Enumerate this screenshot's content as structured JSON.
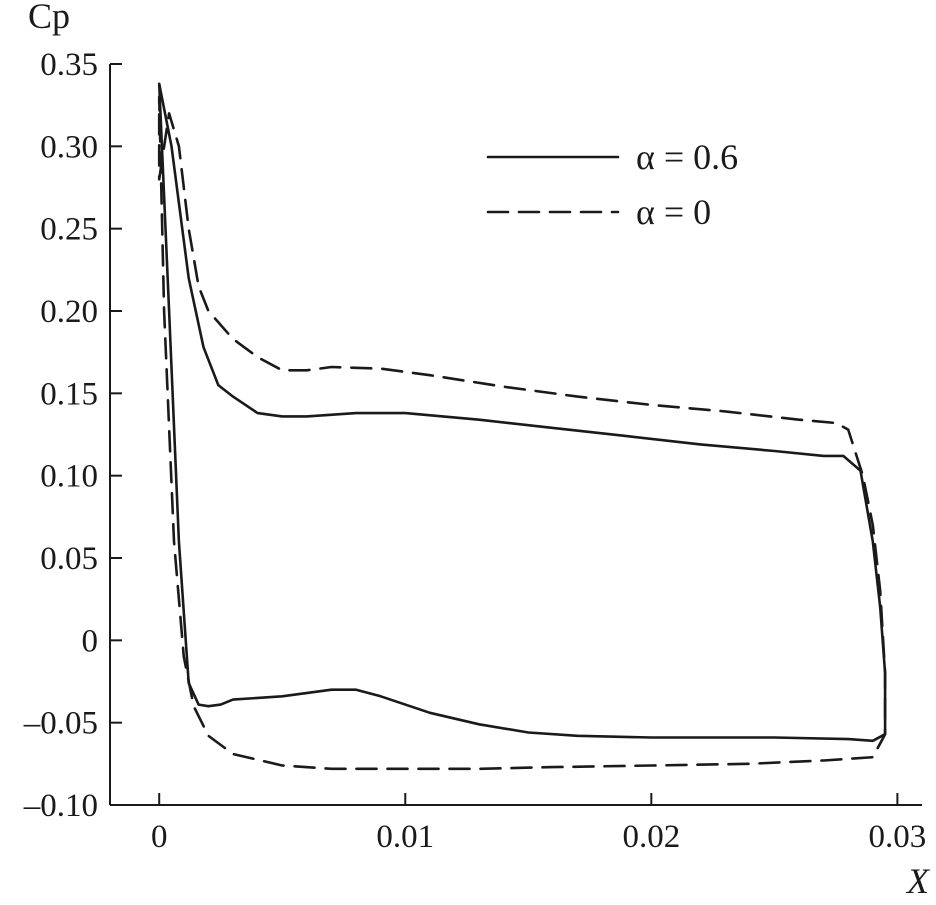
{
  "chart_data": {
    "type": "line",
    "title": "",
    "xlabel": "X",
    "ylabel": "Cp",
    "xlim": [
      -0.002,
      0.031
    ],
    "ylim": [
      -0.1,
      0.35
    ],
    "x_ticks": [
      0,
      0.01,
      0.02,
      0.03
    ],
    "x_tick_labels": [
      "0",
      "0.01",
      "0.02",
      "0.03"
    ],
    "y_ticks": [
      0.35,
      0.3,
      0.25,
      0.2,
      0.15,
      0.1,
      0.05,
      0,
      -0.05,
      -0.1
    ],
    "y_tick_labels": [
      "0.35",
      "0.30",
      "0.25",
      "0.20",
      "0.15",
      "0.10",
      "0.05",
      "0",
      "–0.05",
      "–0.10"
    ],
    "grid": false,
    "legend_position": "top-right",
    "series": [
      {
        "name": "α = 0.6",
        "style": "solid",
        "points": [
          [
            0.0,
            0.338
          ],
          [
            0.0005,
            0.3
          ],
          [
            0.0012,
            0.22
          ],
          [
            0.0018,
            0.178
          ],
          [
            0.0024,
            0.155
          ],
          [
            0.003,
            0.148
          ],
          [
            0.004,
            0.138
          ],
          [
            0.005,
            0.136
          ],
          [
            0.006,
            0.136
          ],
          [
            0.008,
            0.138
          ],
          [
            0.01,
            0.138
          ],
          [
            0.013,
            0.134
          ],
          [
            0.016,
            0.129
          ],
          [
            0.019,
            0.124
          ],
          [
            0.022,
            0.119
          ],
          [
            0.025,
            0.115
          ],
          [
            0.027,
            0.112
          ],
          [
            0.0278,
            0.112
          ],
          [
            0.0285,
            0.103
          ],
          [
            0.029,
            0.06
          ],
          [
            0.0293,
            0.02
          ],
          [
            0.0295,
            -0.02
          ],
          [
            0.0295,
            -0.057
          ],
          [
            0.029,
            -0.061
          ],
          [
            0.028,
            -0.06
          ],
          [
            0.025,
            -0.059
          ],
          [
            0.02,
            -0.059
          ],
          [
            0.017,
            -0.058
          ],
          [
            0.015,
            -0.056
          ],
          [
            0.013,
            -0.051
          ],
          [
            0.011,
            -0.044
          ],
          [
            0.009,
            -0.034
          ],
          [
            0.008,
            -0.03
          ],
          [
            0.007,
            -0.03
          ],
          [
            0.005,
            -0.034
          ],
          [
            0.003,
            -0.036
          ],
          [
            0.0025,
            -0.039
          ],
          [
            0.002,
            -0.04
          ],
          [
            0.0016,
            -0.039
          ],
          [
            0.0012,
            -0.026
          ],
          [
            0.0008,
            0.06
          ],
          [
            0.0004,
            0.2
          ],
          [
            0.0,
            0.338
          ]
        ]
      },
      {
        "name": "α = 0",
        "style": "dashed",
        "points": [
          [
            0.0,
            0.28
          ],
          [
            0.0004,
            0.32
          ],
          [
            0.0008,
            0.3
          ],
          [
            0.0012,
            0.25
          ],
          [
            0.0016,
            0.215
          ],
          [
            0.002,
            0.2
          ],
          [
            0.003,
            0.183
          ],
          [
            0.004,
            0.172
          ],
          [
            0.005,
            0.164
          ],
          [
            0.006,
            0.164
          ],
          [
            0.007,
            0.166
          ],
          [
            0.009,
            0.165
          ],
          [
            0.011,
            0.161
          ],
          [
            0.014,
            0.154
          ],
          [
            0.017,
            0.148
          ],
          [
            0.02,
            0.143
          ],
          [
            0.023,
            0.139
          ],
          [
            0.026,
            0.134
          ],
          [
            0.0275,
            0.132
          ],
          [
            0.028,
            0.128
          ],
          [
            0.0286,
            0.1
          ],
          [
            0.029,
            0.07
          ],
          [
            0.0293,
            0.03
          ],
          [
            0.0295,
            -0.02
          ],
          [
            0.0295,
            -0.057
          ],
          [
            0.029,
            -0.071
          ],
          [
            0.027,
            -0.073
          ],
          [
            0.024,
            -0.075
          ],
          [
            0.02,
            -0.076
          ],
          [
            0.016,
            -0.077
          ],
          [
            0.013,
            -0.078
          ],
          [
            0.01,
            -0.078
          ],
          [
            0.007,
            -0.078
          ],
          [
            0.005,
            -0.076
          ],
          [
            0.003,
            -0.069
          ],
          [
            0.002,
            -0.058
          ],
          [
            0.0014,
            -0.04
          ],
          [
            0.001,
            -0.01
          ],
          [
            0.0006,
            0.06
          ],
          [
            0.0002,
            0.2
          ],
          [
            0.0,
            0.33
          ],
          [
            0.0,
            0.28
          ]
        ]
      }
    ]
  }
}
